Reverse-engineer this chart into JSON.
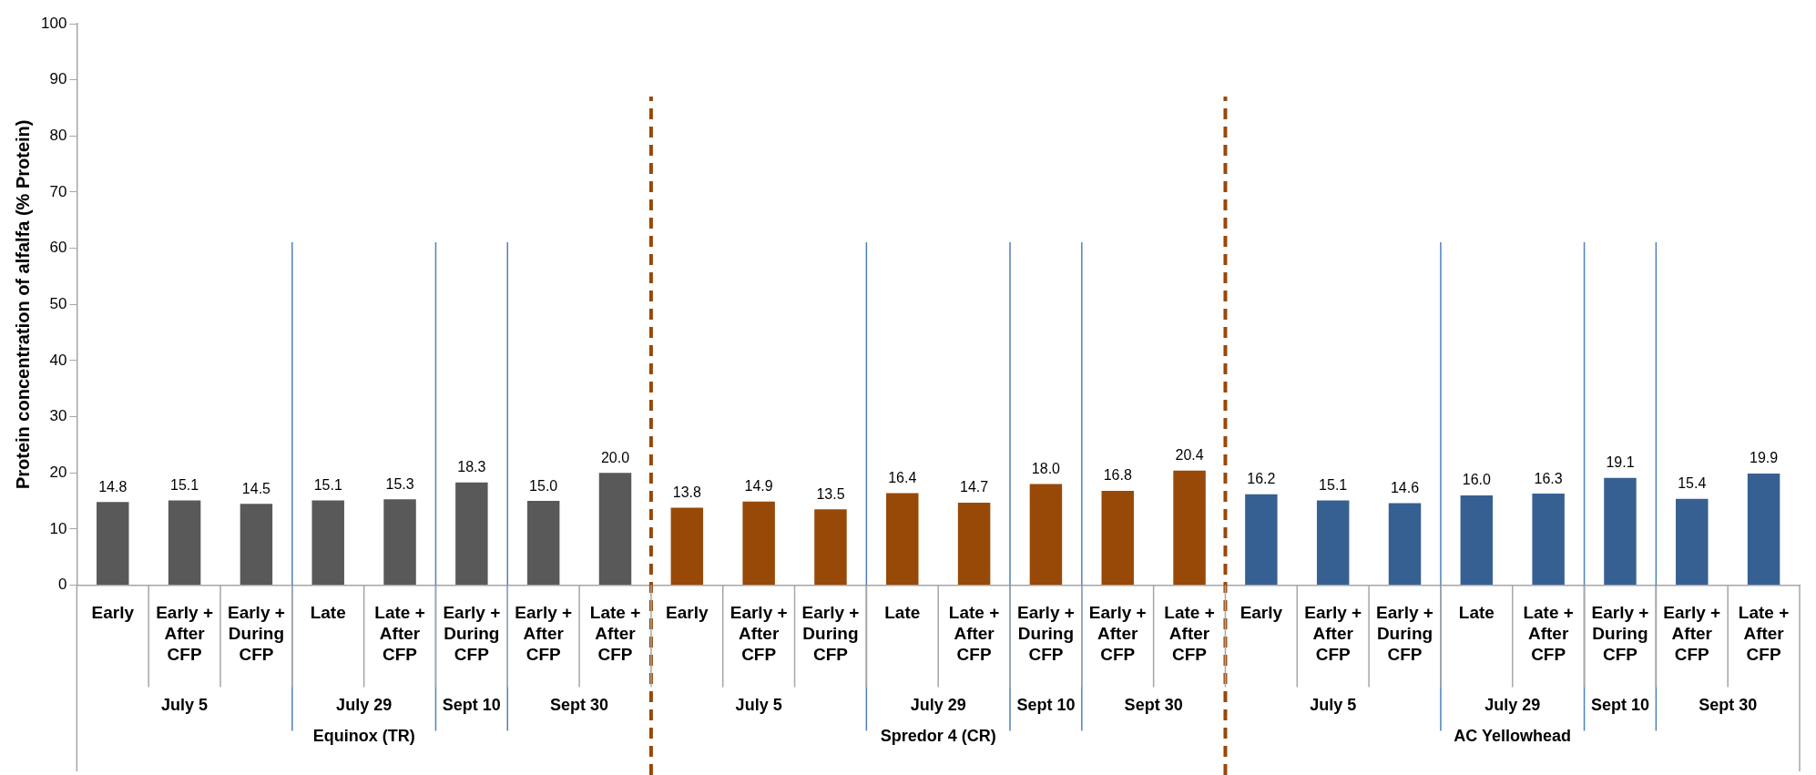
{
  "chart_data": {
    "type": "bar",
    "ylabel": "Protein concentration of alfalfa (% Protein)",
    "categories": [
      "Early",
      "Early + After CFP",
      "Early + During CFP",
      "Late",
      "Late + After CFP",
      "Early + During CFP",
      "Early + After CFP",
      "Late + After CFP",
      "Early",
      "Early + After CFP",
      "Early + During CFP",
      "Late",
      "Late + After CFP",
      "Early + During CFP",
      "Early + After CFP",
      "Late + After CFP",
      "Early",
      "Early + After CFP",
      "Early + During CFP",
      "Late",
      "Late + After CFP",
      "Early + During CFP",
      "Early + After CFP",
      "Late + After CFP"
    ],
    "values": [
      14.8,
      15.1,
      14.5,
      15.1,
      15.3,
      18.3,
      15.0,
      20.0,
      13.8,
      14.9,
      13.5,
      16.4,
      14.7,
      18.0,
      16.8,
      20.4,
      16.2,
      15.1,
      14.6,
      16.0,
      16.3,
      19.1,
      15.4,
      19.9
    ],
    "value_labels": [
      "14.8",
      "15.1",
      "14.5",
      "15.1",
      "15.3",
      "18.3",
      "15.0",
      "20.0",
      "13.8",
      "14.9",
      "13.5",
      "16.4",
      "14.7",
      "18.0",
      "16.8",
      "20.4",
      "16.2",
      "15.1",
      "14.6",
      "16.0",
      "16.3",
      "19.1",
      "15.4",
      "19.9"
    ],
    "colors": [
      "#595959",
      "#595959",
      "#595959",
      "#595959",
      "#595959",
      "#595959",
      "#595959",
      "#595959",
      "#984807",
      "#984807",
      "#984807",
      "#984807",
      "#984807",
      "#984807",
      "#984807",
      "#984807",
      "#376092",
      "#376092",
      "#376092",
      "#376092",
      "#376092",
      "#376092",
      "#376092",
      "#376092"
    ],
    "ylim": [
      0,
      100
    ],
    "yticks": [
      0,
      10,
      20,
      30,
      40,
      50,
      60,
      70,
      80,
      90,
      100
    ],
    "grid": false,
    "legend": false,
    "annotations": [
      "July 5",
      "July 29",
      "Sept 10",
      "Sept 30",
      "July 5",
      "July 29",
      "Sept 10",
      "Sept 30",
      "July 5",
      "July 29",
      "Sept 10",
      "Sept 30",
      "Equinox (TR)",
      "Spredor 4 (CR)",
      "AC Yellowhead"
    ]
  }
}
